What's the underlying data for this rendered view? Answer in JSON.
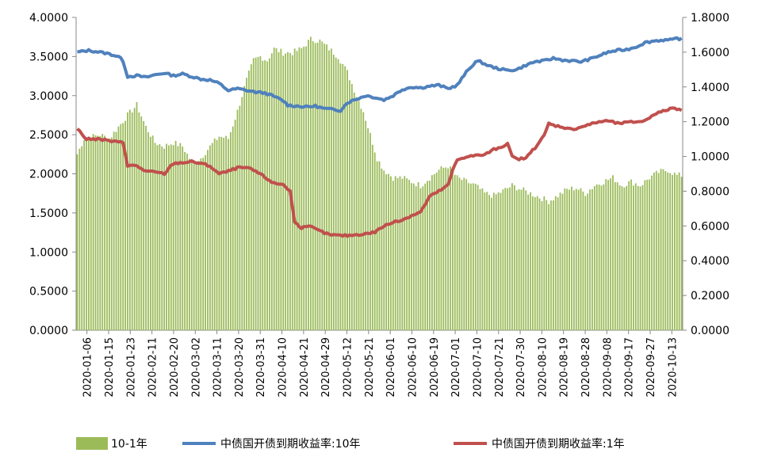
{
  "chart_data": {
    "type": "bar+line",
    "left_axis": {
      "min": 0,
      "max": 4,
      "ticks": [
        "0.0000",
        "0.5000",
        "1.0000",
        "1.5000",
        "2.0000",
        "2.5000",
        "3.0000",
        "3.5000",
        "4.0000"
      ]
    },
    "right_axis": {
      "min": 0,
      "max": 1.8,
      "ticks": [
        "0.0000",
        "0.2000",
        "0.4000",
        "0.6000",
        "0.8000",
        "1.0000",
        "1.2000",
        "1.4000",
        "1.6000",
        "1.8000"
      ]
    },
    "x_tick_labels": [
      "2020-01-06",
      "2020-01-15",
      "2020-01-23",
      "2020-02-11",
      "2020-02-20",
      "2020-03-02",
      "2020-03-11",
      "2020-03-20",
      "2020-03-31",
      "2020-04-10",
      "2020-04-21",
      "2020-04-29",
      "2020-05-12",
      "2020-05-21",
      "2020-06-01",
      "2020-06-10",
      "2020-06-19",
      "2020-07-01",
      "2020-07-10",
      "2020-07-21",
      "2020-07-30",
      "2020-08-10",
      "2020-08-19",
      "2020-08-28",
      "2020-09-08",
      "2020-09-17",
      "2020-09-27",
      "2020-10-13"
    ],
    "series": [
      {
        "name": "10-1年",
        "kind": "bar",
        "axis": "left",
        "color": "#9bbb59",
        "keypoints": [
          [
            0,
            2.25
          ],
          [
            3,
            2.45
          ],
          [
            10,
            2.5
          ],
          [
            14,
            2.45
          ],
          [
            18,
            2.6
          ],
          [
            22,
            2.75
          ],
          [
            26,
            2.88
          ],
          [
            30,
            2.6
          ],
          [
            34,
            2.4
          ],
          [
            38,
            2.35
          ],
          [
            42,
            2.4
          ],
          [
            46,
            2.35
          ],
          [
            50,
            2.15
          ],
          [
            54,
            2.2
          ],
          [
            58,
            2.35
          ],
          [
            62,
            2.48
          ],
          [
            66,
            2.45
          ],
          [
            70,
            2.8
          ],
          [
            74,
            3.2
          ],
          [
            77,
            3.45
          ],
          [
            80,
            3.5
          ],
          [
            83,
            3.45
          ],
          [
            86,
            3.6
          ],
          [
            90,
            3.55
          ],
          [
            94,
            3.55
          ],
          [
            98,
            3.6
          ],
          [
            102,
            3.72
          ],
          [
            106,
            3.7
          ],
          [
            110,
            3.6
          ],
          [
            114,
            3.5
          ],
          [
            118,
            3.3
          ],
          [
            122,
            3.0
          ],
          [
            125,
            2.8
          ],
          [
            128,
            2.5
          ],
          [
            131,
            2.2
          ],
          [
            134,
            2.05
          ],
          [
            138,
            1.95
          ],
          [
            142,
            1.95
          ],
          [
            146,
            1.9
          ],
          [
            150,
            1.85
          ],
          [
            154,
            1.95
          ],
          [
            158,
            2.05
          ],
          [
            162,
            2.1
          ],
          [
            166,
            1.95
          ],
          [
            170,
            1.9
          ],
          [
            174,
            1.85
          ],
          [
            178,
            1.75
          ],
          [
            182,
            1.72
          ],
          [
            186,
            1.78
          ],
          [
            190,
            1.85
          ],
          [
            194,
            1.8
          ],
          [
            198,
            1.75
          ],
          [
            202,
            1.7
          ],
          [
            206,
            1.65
          ],
          [
            210,
            1.72
          ],
          [
            214,
            1.8
          ],
          [
            218,
            1.82
          ],
          [
            222,
            1.75
          ],
          [
            226,
            1.85
          ],
          [
            230,
            1.9
          ],
          [
            234,
            1.95
          ],
          [
            238,
            1.85
          ],
          [
            242,
            1.9
          ],
          [
            246,
            1.85
          ],
          [
            250,
            1.95
          ],
          [
            254,
            2.02
          ],
          [
            258,
            2.05
          ],
          [
            262,
            1.98
          ]
        ]
      },
      {
        "name": "中债国开债到期收益率:10年",
        "kind": "line",
        "axis": "right",
        "color": "#4f81bd",
        "keypoints": [
          [
            0,
            1.6
          ],
          [
            5,
            1.61
          ],
          [
            10,
            1.6
          ],
          [
            14,
            1.59
          ],
          [
            18,
            1.575
          ],
          [
            20,
            1.55
          ],
          [
            22,
            1.46
          ],
          [
            26,
            1.465
          ],
          [
            30,
            1.455
          ],
          [
            34,
            1.47
          ],
          [
            38,
            1.48
          ],
          [
            42,
            1.465
          ],
          [
            46,
            1.475
          ],
          [
            50,
            1.46
          ],
          [
            54,
            1.445
          ],
          [
            58,
            1.44
          ],
          [
            62,
            1.42
          ],
          [
            66,
            1.38
          ],
          [
            70,
            1.39
          ],
          [
            74,
            1.38
          ],
          [
            78,
            1.37
          ],
          [
            82,
            1.365
          ],
          [
            86,
            1.345
          ],
          [
            90,
            1.32
          ],
          [
            92,
            1.295
          ],
          [
            96,
            1.29
          ],
          [
            100,
            1.285
          ],
          [
            104,
            1.29
          ],
          [
            108,
            1.275
          ],
          [
            112,
            1.27
          ],
          [
            115,
            1.265
          ],
          [
            118,
            1.31
          ],
          [
            122,
            1.33
          ],
          [
            126,
            1.35
          ],
          [
            130,
            1.34
          ],
          [
            134,
            1.325
          ],
          [
            138,
            1.35
          ],
          [
            142,
            1.385
          ],
          [
            146,
            1.4
          ],
          [
            150,
            1.395
          ],
          [
            154,
            1.405
          ],
          [
            158,
            1.41
          ],
          [
            162,
            1.39
          ],
          [
            166,
            1.41
          ],
          [
            170,
            1.485
          ],
          [
            174,
            1.545
          ],
          [
            176,
            1.545
          ],
          [
            180,
            1.52
          ],
          [
            184,
            1.505
          ],
          [
            188,
            1.495
          ],
          [
            192,
            1.5
          ],
          [
            196,
            1.525
          ],
          [
            200,
            1.545
          ],
          [
            204,
            1.55
          ],
          [
            208,
            1.565
          ],
          [
            212,
            1.555
          ],
          [
            216,
            1.55
          ],
          [
            220,
            1.545
          ],
          [
            224,
            1.56
          ],
          [
            228,
            1.58
          ],
          [
            232,
            1.6
          ],
          [
            236,
            1.61
          ],
          [
            240,
            1.615
          ],
          [
            244,
            1.63
          ],
          [
            248,
            1.655
          ],
          [
            252,
            1.665
          ],
          [
            256,
            1.67
          ],
          [
            260,
            1.67
          ],
          [
            264,
            1.675
          ],
          [
            262,
            1.68
          ]
        ]
      },
      {
        "name": "中债国开债到期收益率:1年",
        "kind": "line",
        "axis": "right",
        "color": "#c0504d",
        "keypoints": [
          [
            0,
            1.16
          ],
          [
            4,
            1.1
          ],
          [
            8,
            1.1
          ],
          [
            12,
            1.095
          ],
          [
            16,
            1.085
          ],
          [
            20,
            1.08
          ],
          [
            22,
            0.95
          ],
          [
            26,
            0.945
          ],
          [
            30,
            0.915
          ],
          [
            34,
            0.91
          ],
          [
            38,
            0.9
          ],
          [
            42,
            0.96
          ],
          [
            46,
            0.965
          ],
          [
            50,
            0.97
          ],
          [
            54,
            0.96
          ],
          [
            58,
            0.945
          ],
          [
            62,
            0.9
          ],
          [
            66,
            0.915
          ],
          [
            70,
            0.935
          ],
          [
            74,
            0.935
          ],
          [
            78,
            0.915
          ],
          [
            82,
            0.88
          ],
          [
            86,
            0.845
          ],
          [
            90,
            0.84
          ],
          [
            93,
            0.8
          ],
          [
            95,
            0.62
          ],
          [
            98,
            0.59
          ],
          [
            102,
            0.595
          ],
          [
            106,
            0.57
          ],
          [
            110,
            0.55
          ],
          [
            114,
            0.545
          ],
          [
            118,
            0.545
          ],
          [
            122,
            0.55
          ],
          [
            126,
            0.555
          ],
          [
            130,
            0.565
          ],
          [
            134,
            0.6
          ],
          [
            138,
            0.62
          ],
          [
            142,
            0.635
          ],
          [
            146,
            0.66
          ],
          [
            150,
            0.68
          ],
          [
            154,
            0.77
          ],
          [
            158,
            0.8
          ],
          [
            162,
            0.835
          ],
          [
            164,
            0.92
          ],
          [
            166,
            0.98
          ],
          [
            170,
            1.0
          ],
          [
            174,
            1.005
          ],
          [
            178,
            1.01
          ],
          [
            182,
            1.04
          ],
          [
            186,
            1.06
          ],
          [
            188,
            1.07
          ],
          [
            190,
            1.0
          ],
          [
            192,
            0.985
          ],
          [
            196,
            0.99
          ],
          [
            200,
            1.05
          ],
          [
            204,
            1.12
          ],
          [
            206,
            1.19
          ],
          [
            208,
            1.18
          ],
          [
            212,
            1.17
          ],
          [
            216,
            1.155
          ],
          [
            220,
            1.17
          ],
          [
            224,
            1.185
          ],
          [
            228,
            1.2
          ],
          [
            232,
            1.205
          ],
          [
            236,
            1.19
          ],
          [
            240,
            1.195
          ],
          [
            244,
            1.2
          ],
          [
            248,
            1.205
          ],
          [
            252,
            1.245
          ],
          [
            256,
            1.26
          ],
          [
            260,
            1.28
          ],
          [
            264,
            1.27
          ]
        ]
      }
    ]
  }
}
